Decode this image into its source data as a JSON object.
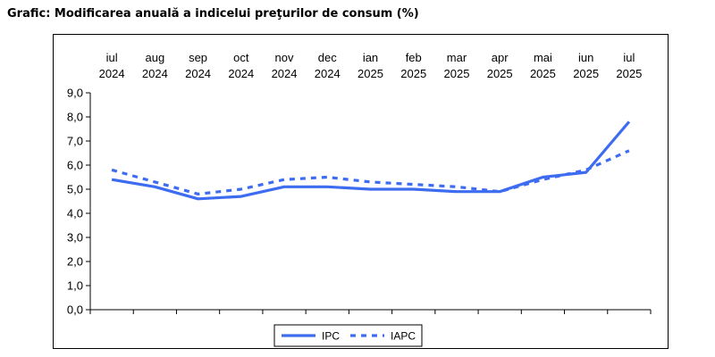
{
  "title": "Grafic: Modificarea anuală a indicelui preţurilor de consum (%)",
  "chart_data": {
    "type": "line",
    "title": "Grafic: Modificarea anuală a indicelui preţurilor de consum (%)",
    "categories": [
      [
        "iul",
        "2024"
      ],
      [
        "aug",
        "2024"
      ],
      [
        "sep",
        "2024"
      ],
      [
        "oct",
        "2024"
      ],
      [
        "nov",
        "2024"
      ],
      [
        "dec",
        "2024"
      ],
      [
        "ian",
        "2025"
      ],
      [
        "feb",
        "2025"
      ],
      [
        "mar",
        "2025"
      ],
      [
        "apr",
        "2025"
      ],
      [
        "mai",
        "2025"
      ],
      [
        "iun",
        "2025"
      ],
      [
        "iul",
        "2025"
      ]
    ],
    "series": [
      {
        "name": "IPC",
        "style": "solid",
        "color": "#3d6cf0",
        "values": [
          5.4,
          5.1,
          4.6,
          4.7,
          5.1,
          5.1,
          5.0,
          5.0,
          4.9,
          4.9,
          5.5,
          5.7,
          7.8
        ]
      },
      {
        "name": "IAPC",
        "style": "dashed",
        "color": "#3d6cf0",
        "values": [
          5.8,
          5.3,
          4.8,
          5.0,
          5.4,
          5.5,
          5.3,
          5.2,
          5.1,
          4.9,
          5.4,
          5.8,
          6.6
        ]
      }
    ],
    "ylim": [
      0,
      9
    ],
    "yticks": [
      "0,0",
      "1,0",
      "2,0",
      "3,0",
      "4,0",
      "5,0",
      "6,0",
      "7,0",
      "8,0",
      "9,0"
    ],
    "xaxis_position": "top",
    "legend_position": "bottom-center",
    "grid": false
  }
}
